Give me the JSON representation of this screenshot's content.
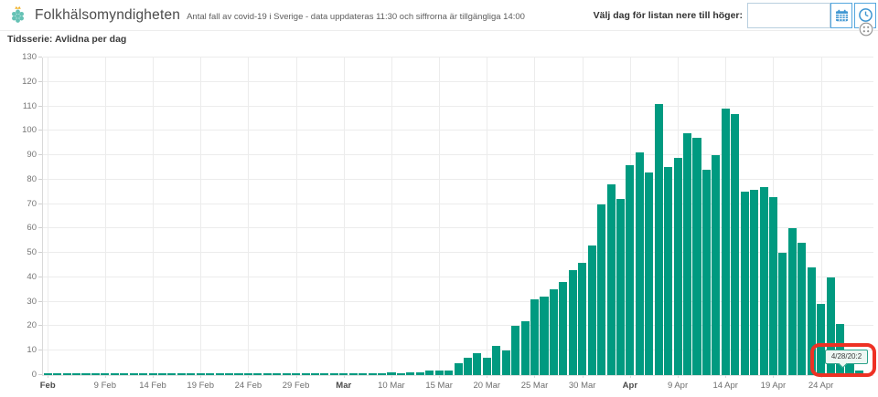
{
  "header": {
    "app_title": "Folkhälsomyndigheten",
    "subtitle": "Antal fall av covid-19 i Sverige - data uppdateras 11:30 och siffrorna är tillgängliga 14:00",
    "date_picker_label": "Välj dag för listan nere till höger:",
    "date_input_value": "",
    "calendar_icon": "calendar-icon",
    "clock_icon": "clock-icon",
    "widget_options_icon": "widget-options-dots-icon"
  },
  "panel": {
    "title": "Tidsserie: Avlidna per dag"
  },
  "tooltip": {
    "text": "4/28/20:2"
  },
  "annotation": {
    "type": "highlight-box",
    "color": "#ee3124"
  },
  "colors": {
    "bar": "#009a80",
    "accent_blue": "#3e96d2",
    "tooltip_border": "#2aa189",
    "logo_teal": "#66c2b5",
    "logo_crown": "#f2b431"
  },
  "chart_data": {
    "type": "bar",
    "title": "Tidsserie: Avlidna per dag",
    "xlabel": "",
    "ylabel": "",
    "ylim": [
      0,
      130
    ],
    "y_tick_step": 10,
    "grid": true,
    "legend": false,
    "dates": [
      "2/3",
      "2/4",
      "2/5",
      "2/6",
      "2/7",
      "2/8",
      "2/9",
      "2/10",
      "2/11",
      "2/12",
      "2/13",
      "2/14",
      "2/15",
      "2/16",
      "2/17",
      "2/18",
      "2/19",
      "2/20",
      "2/21",
      "2/22",
      "2/23",
      "2/24",
      "2/25",
      "2/26",
      "2/27",
      "2/28",
      "2/29",
      "3/1",
      "3/2",
      "3/3",
      "3/4",
      "3/5",
      "3/6",
      "3/7",
      "3/8",
      "3/9",
      "3/10",
      "3/11",
      "3/12",
      "3/13",
      "3/14",
      "3/15",
      "3/16",
      "3/17",
      "3/18",
      "3/19",
      "3/20",
      "3/21",
      "3/22",
      "3/23",
      "3/24",
      "3/25",
      "3/26",
      "3/27",
      "3/28",
      "3/29",
      "3/30",
      "3/31",
      "4/1",
      "4/2",
      "4/3",
      "4/4",
      "4/5",
      "4/6",
      "4/7",
      "4/8",
      "4/9",
      "4/10",
      "4/11",
      "4/12",
      "4/13",
      "4/14",
      "4/15",
      "4/16",
      "4/17",
      "4/18",
      "4/19",
      "4/20",
      "4/21",
      "4/22",
      "4/23",
      "4/24",
      "4/25",
      "4/26",
      "4/27",
      "4/28",
      "4/29"
    ],
    "values": [
      0,
      0,
      0,
      0,
      0,
      0,
      0,
      0,
      0,
      0,
      0,
      0,
      0,
      0,
      0,
      0,
      0,
      0,
      0,
      0,
      0,
      0,
      0,
      0,
      0,
      0,
      0,
      0,
      0,
      0,
      0,
      0,
      0,
      0,
      0,
      0,
      1,
      0,
      1,
      1,
      2,
      2,
      2,
      5,
      7,
      9,
      7,
      12,
      10,
      20,
      22,
      31,
      32,
      35,
      38,
      43,
      46,
      53,
      70,
      78,
      72,
      86,
      91,
      83,
      111,
      85,
      89,
      99,
      97,
      84,
      90,
      109,
      107,
      75,
      76,
      77,
      73,
      50,
      60,
      54,
      44,
      29,
      40,
      21,
      8,
      2,
      0
    ],
    "x_ticks": [
      {
        "label": "Feb",
        "index": 0,
        "bold": true
      },
      {
        "label": "9 Feb",
        "index": 6,
        "bold": false
      },
      {
        "label": "14 Feb",
        "index": 11,
        "bold": false
      },
      {
        "label": "19 Feb",
        "index": 16,
        "bold": false
      },
      {
        "label": "24 Feb",
        "index": 21,
        "bold": false
      },
      {
        "label": "29 Feb",
        "index": 26,
        "bold": false
      },
      {
        "label": "Mar",
        "index": 31,
        "bold": true
      },
      {
        "label": "10 Mar",
        "index": 36,
        "bold": false
      },
      {
        "label": "15 Mar",
        "index": 41,
        "bold": false
      },
      {
        "label": "20 Mar",
        "index": 46,
        "bold": false
      },
      {
        "label": "25 Mar",
        "index": 51,
        "bold": false
      },
      {
        "label": "30 Mar",
        "index": 56,
        "bold": false
      },
      {
        "label": "Apr",
        "index": 61,
        "bold": true
      },
      {
        "label": "9 Apr",
        "index": 66,
        "bold": false
      },
      {
        "label": "14 Apr",
        "index": 71,
        "bold": false
      },
      {
        "label": "19 Apr",
        "index": 76,
        "bold": false
      },
      {
        "label": "24 Apr",
        "index": 81,
        "bold": false
      }
    ]
  }
}
